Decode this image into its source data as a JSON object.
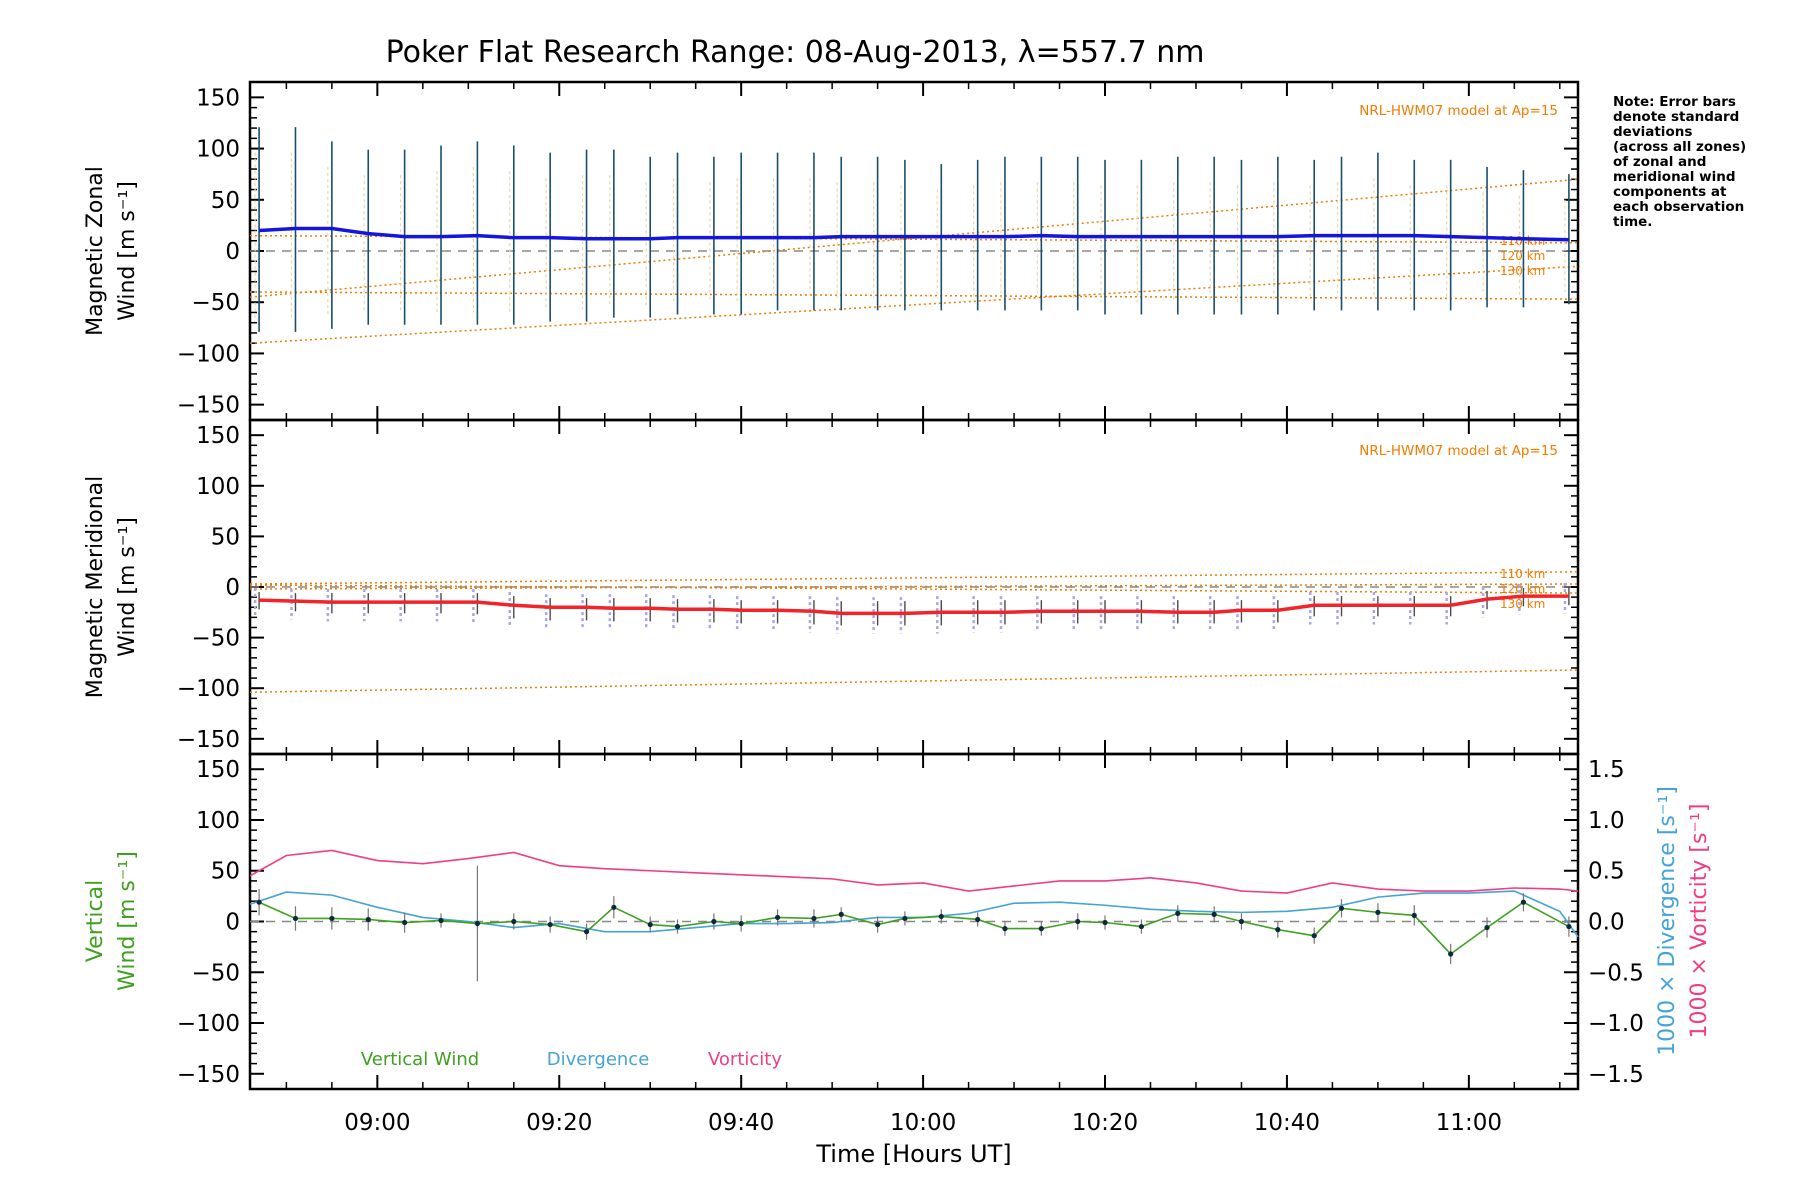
{
  "page": {
    "title": "Poker Flat Research Range: 08-Aug-2013, λ=557.7 nm"
  },
  "note": {
    "lines": [
      "Note: Error bars",
      "denote standard",
      "deviations",
      "(across all zones)",
      "of zonal and",
      "meridional wind",
      "components at",
      "each observation",
      "time."
    ]
  },
  "colors": {
    "zonal": "#1515e0",
    "meridional": "#f0242a",
    "model": "#f07c00",
    "vertical": "#40a020",
    "divergence": "#45a3d5",
    "vorticity": "#ef3d86",
    "errorbar_dark": "#1a4e6e",
    "scatter_light": "#a8a8e8"
  },
  "chart_data": {
    "type": "line",
    "x_axis": {
      "label": "Time [Hours UT]",
      "range_minutes_since_0000": [
        526,
        672
      ],
      "ticks": [
        {
          "minute": 540,
          "label": "09:00"
        },
        {
          "minute": 560,
          "label": "09:20"
        },
        {
          "minute": 580,
          "label": "09:40"
        },
        {
          "minute": 600,
          "label": "10:00"
        },
        {
          "minute": 620,
          "label": "10:20"
        },
        {
          "minute": 640,
          "label": "10:40"
        },
        {
          "minute": 660,
          "label": "11:00"
        }
      ]
    },
    "y_ticks": [
      150,
      100,
      50,
      0,
      -50,
      -100,
      -150
    ],
    "y_ticks_labels": [
      "150",
      "100",
      "50",
      "0",
      "−50",
      "−100",
      "−150"
    ],
    "ylim": [
      -165,
      165
    ],
    "panels": {
      "zonal": {
        "ylabel_line1": "Magnetic Zonal",
        "ylabel_line2": "Wind [m s⁻¹]",
        "model_label": "NRL-HWM07 model at Ap=15",
        "times": [
          527,
          531,
          535,
          539,
          543,
          547,
          551,
          555,
          559,
          563,
          566,
          570,
          573,
          577,
          580,
          584,
          588,
          591,
          595,
          598,
          602,
          606,
          609,
          613,
          617,
          620,
          624,
          628,
          632,
          635,
          639,
          643,
          646,
          650,
          654,
          658,
          662,
          666,
          671
        ],
        "mean": [
          20,
          22,
          22,
          17,
          14,
          14,
          15,
          13,
          13,
          12,
          12,
          12,
          13,
          13,
          13,
          13,
          13,
          14,
          14,
          14,
          14,
          14,
          14,
          15,
          14,
          14,
          14,
          14,
          14,
          14,
          14,
          15,
          15,
          15,
          15,
          14,
          13,
          12,
          11
        ],
        "err_top": [
          121,
          121,
          107,
          99,
          99,
          103,
          107,
          103,
          96,
          99,
          99,
          92,
          96,
          92,
          96,
          96,
          96,
          92,
          92,
          89,
          85,
          89,
          92,
          92,
          92,
          89,
          89,
          92,
          92,
          89,
          92,
          89,
          92,
          96,
          89,
          89,
          82,
          79,
          75
        ],
        "err_bottom": [
          -79,
          -79,
          -76,
          -72,
          -72,
          -72,
          -72,
          -72,
          -69,
          -69,
          -65,
          -65,
          -62,
          -62,
          -62,
          -58,
          -58,
          -58,
          -58,
          -58,
          -58,
          -58,
          -58,
          -58,
          -58,
          -62,
          -62,
          -62,
          -62,
          -62,
          -62,
          -58,
          -58,
          -58,
          -58,
          -58,
          -55,
          -55,
          -52
        ],
        "model": [
          {
            "name": "110 km",
            "start": -45,
            "end": 70
          },
          {
            "name": "120 km",
            "start": 15,
            "end": 8
          },
          {
            "name": "130 km",
            "start": -90,
            "end": -15
          }
        ],
        "model_extra_line": {
          "start": -40,
          "end": -47
        }
      },
      "meridional": {
        "ylabel_line1": "Magnetic Meridional",
        "ylabel_line2": "Wind [m s⁻¹]",
        "model_label": "NRL-HWM07 model at Ap=15",
        "times": [
          527,
          531,
          535,
          539,
          543,
          547,
          551,
          555,
          559,
          563,
          566,
          570,
          573,
          577,
          580,
          584,
          588,
          591,
          595,
          598,
          602,
          606,
          609,
          613,
          617,
          620,
          624,
          628,
          632,
          635,
          639,
          643,
          646,
          650,
          654,
          658,
          662,
          666,
          671
        ],
        "mean": [
          -13,
          -14,
          -15,
          -15,
          -15,
          -15,
          -15,
          -18,
          -20,
          -20,
          -21,
          -21,
          -22,
          -22,
          -23,
          -23,
          -24,
          -26,
          -26,
          -26,
          -25,
          -25,
          -25,
          -24,
          -24,
          -24,
          -24,
          -25,
          -25,
          -23,
          -23,
          -18,
          -18,
          -18,
          -18,
          -18,
          -12,
          -9,
          -9
        ],
        "err_top": [
          -5,
          -6,
          -6,
          -6,
          -6,
          -6,
          -6,
          -9,
          -11,
          -11,
          -11,
          -11,
          -12,
          -12,
          -13,
          -13,
          -13,
          -14,
          -14,
          -14,
          -13,
          -13,
          -13,
          -13,
          -13,
          -13,
          -13,
          -13,
          -13,
          -13,
          -13,
          -9,
          -9,
          -9,
          -9,
          -9,
          -4,
          -1,
          0
        ],
        "err_bottom": [
          -22,
          -24,
          -26,
          -26,
          -26,
          -26,
          -27,
          -31,
          -33,
          -33,
          -34,
          -34,
          -35,
          -35,
          -36,
          -36,
          -37,
          -38,
          -38,
          -38,
          -38,
          -37,
          -37,
          -36,
          -36,
          -36,
          -36,
          -36,
          -36,
          -35,
          -35,
          -29,
          -29,
          -29,
          -29,
          -29,
          -22,
          -19,
          -18
        ],
        "model": [
          {
            "name": "110 km",
            "start": 3,
            "end": 15
          },
          {
            "name": "120 km",
            "start": -2,
            "end": 3
          },
          {
            "name": "130 km",
            "start": -104,
            "end": -82
          }
        ],
        "model_extra_line": {
          "start": 2,
          "end": -6
        }
      },
      "vertical": {
        "ylabel_line1": "Vertical",
        "ylabel_line2": "Wind [m s⁻¹]",
        "right_label_div": "1000 × Divergence [s⁻¹]",
        "right_label_vort": "1000 × Vorticity [s⁻¹]",
        "right_ticks": [
          1.5,
          1.0,
          0.5,
          0.0,
          -0.5,
          -1.0,
          -1.5
        ],
        "right_ticks_labels": [
          "1.5",
          "1.0",
          "0.5",
          "0.0",
          "−0.5",
          "−1.0",
          "−1.5"
        ],
        "legend": [
          "Vertical Wind",
          "Divergence",
          "Vorticity"
        ],
        "times": [
          527,
          531,
          535,
          539,
          543,
          547,
          551,
          555,
          559,
          563,
          566,
          570,
          573,
          577,
          580,
          584,
          588,
          591,
          595,
          598,
          602,
          606,
          609,
          613,
          617,
          620,
          624,
          628,
          632,
          635,
          639,
          643,
          646,
          650,
          654,
          658,
          662,
          666,
          671
        ],
        "vertical_wind": [
          19,
          3,
          3,
          2,
          -1,
          1,
          -2,
          0,
          -3,
          -10,
          14,
          -3,
          -5,
          0,
          -2,
          4,
          3,
          7,
          -3,
          3,
          5,
          2,
          -7,
          -7,
          0,
          -1,
          -5,
          8,
          7,
          0,
          -8,
          -14,
          13,
          9,
          6,
          -32,
          -6,
          19,
          -5
        ],
        "vertical_err_top": [
          32,
          15,
          14,
          13,
          9,
          8,
          55,
          8,
          5,
          -2,
          25,
          5,
          2,
          8,
          6,
          12,
          12,
          14,
          5,
          10,
          12,
          9,
          0,
          0,
          8,
          6,
          2,
          16,
          15,
          8,
          0,
          -6,
          22,
          18,
          16,
          -22,
          4,
          28,
          5
        ],
        "vertical_err_bottom": [
          6,
          -9,
          -8,
          -9,
          -11,
          -6,
          -59,
          -8,
          -11,
          -18,
          3,
          -11,
          -12,
          -8,
          -10,
          -4,
          -6,
          0,
          -11,
          -4,
          -2,
          -5,
          -14,
          -14,
          -8,
          -8,
          -12,
          0,
          -1,
          -8,
          -16,
          -22,
          4,
          0,
          -4,
          -42,
          -16,
          10,
          -15
        ]
      }
    },
    "divergence_x1000": {
      "times": [
        526,
        530,
        535,
        540,
        545,
        550,
        555,
        560,
        565,
        570,
        575,
        580,
        585,
        590,
        595,
        600,
        605,
        610,
        615,
        620,
        625,
        630,
        635,
        640,
        645,
        650,
        655,
        660,
        665,
        670,
        672
      ],
      "values": [
        0.17,
        0.29,
        0.26,
        0.14,
        0.04,
        0.0,
        -0.06,
        -0.02,
        -0.1,
        -0.1,
        -0.06,
        -0.02,
        -0.02,
        -0.01,
        0.04,
        0.04,
        0.08,
        0.18,
        0.19,
        0.16,
        0.12,
        0.1,
        0.09,
        0.1,
        0.14,
        0.24,
        0.28,
        0.28,
        0.3,
        0.1,
        -0.15
      ]
    },
    "vorticity_x1000": {
      "times": [
        526,
        530,
        535,
        540,
        545,
        550,
        555,
        560,
        565,
        570,
        575,
        580,
        585,
        590,
        595,
        600,
        605,
        610,
        615,
        620,
        625,
        630,
        635,
        640,
        645,
        650,
        655,
        660,
        665,
        670,
        672
      ],
      "values": [
        0.45,
        0.65,
        0.7,
        0.6,
        0.57,
        0.62,
        0.68,
        0.55,
        0.52,
        0.5,
        0.48,
        0.46,
        0.44,
        0.42,
        0.36,
        0.38,
        0.3,
        0.35,
        0.4,
        0.4,
        0.43,
        0.38,
        0.3,
        0.28,
        0.38,
        0.32,
        0.3,
        0.3,
        0.33,
        0.32,
        0.3
      ]
    }
  }
}
